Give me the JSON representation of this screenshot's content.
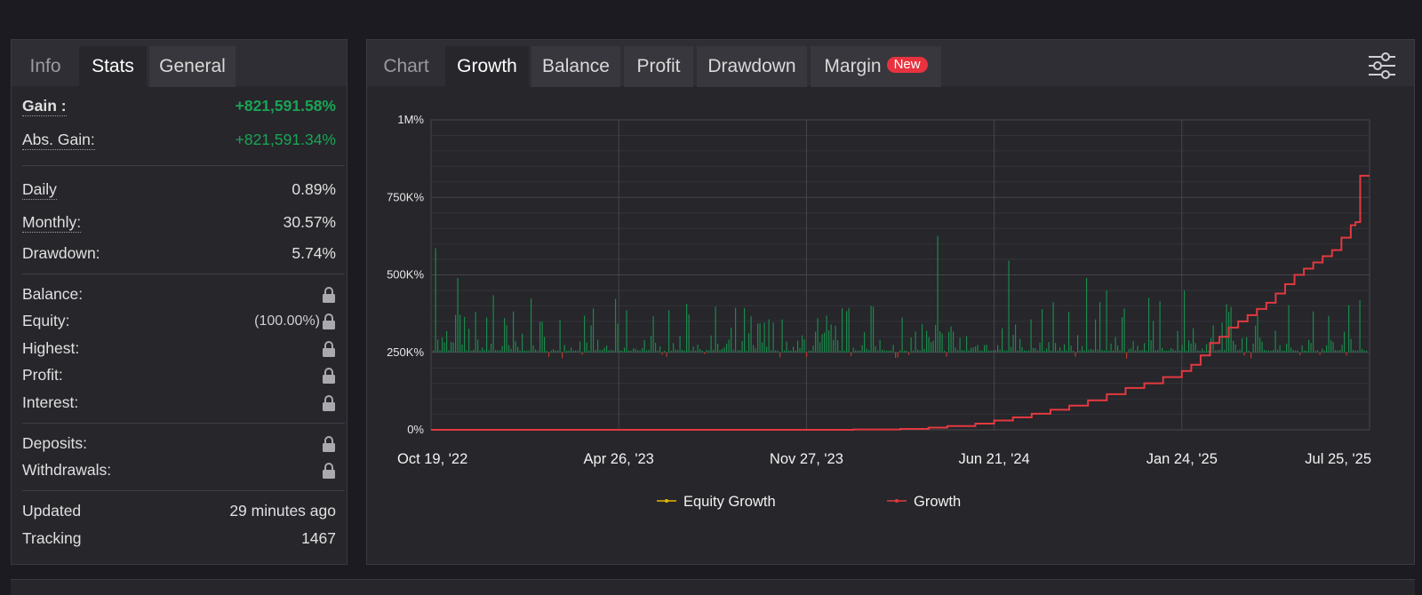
{
  "stats_panel": {
    "tabs": [
      {
        "label": "Info",
        "state": "inactive"
      },
      {
        "label": "Stats",
        "state": "active"
      },
      {
        "label": "General",
        "state": "inactive"
      }
    ],
    "rows": {
      "gain": {
        "label": "Gain :",
        "value": "+821,591.58%"
      },
      "abs_gain": {
        "label": "Abs. Gain:",
        "value": "+821,591.34%"
      },
      "daily": {
        "label": "Daily",
        "value": "0.89%"
      },
      "monthly": {
        "label": "Monthly:",
        "value": "30.57%"
      },
      "drawdown": {
        "label": "Drawdown:",
        "value": "5.74%"
      },
      "balance": {
        "label": "Balance:",
        "icon": "lock-icon"
      },
      "equity": {
        "label": "Equity:",
        "value": "(100.00%)",
        "icon": "lock-icon"
      },
      "highest": {
        "label": "Highest:",
        "icon": "lock-icon"
      },
      "profit": {
        "label": "Profit:",
        "icon": "lock-icon"
      },
      "interest": {
        "label": "Interest:",
        "icon": "lock-icon"
      },
      "deposits": {
        "label": "Deposits:",
        "icon": "lock-icon"
      },
      "withdrawals": {
        "label": "Withdrawals:",
        "icon": "lock-icon"
      },
      "updated": {
        "label": "Updated",
        "value": "29 minutes ago"
      },
      "tracking": {
        "label": "Tracking",
        "value": "1467"
      }
    }
  },
  "chart_panel": {
    "tabs": [
      {
        "label": "Chart",
        "state": "inactive"
      },
      {
        "label": "Growth",
        "state": "active"
      },
      {
        "label": "Balance",
        "state": "inactive"
      },
      {
        "label": "Profit",
        "state": "inactive"
      },
      {
        "label": "Drawdown",
        "state": "inactive"
      },
      {
        "label": "Margin",
        "state": "inactive",
        "badge": "New"
      }
    ],
    "settings_icon": "sliders-icon"
  },
  "colors": {
    "growth_line": "#e2393f",
    "equity_line": "#e6b800",
    "bars_positive": "#1a8a4a",
    "bars_negative": "#c0392b",
    "gain_text": "#1aa454"
  },
  "chart_data": {
    "type": "line",
    "y_ticks": [
      "0%",
      "250K%",
      "500K%",
      "750K%",
      "1M%"
    ],
    "ylim": [
      0,
      1000000
    ],
    "x_ticks": [
      "Oct 19, '22",
      "Apr 26, '23",
      "Nov 27, '23",
      "Jun 21, '24",
      "Jan 24, '25",
      "Jul 25, '25"
    ],
    "grid": true,
    "legend_position": "bottom",
    "legend": [
      "Equity Growth",
      "Growth"
    ],
    "series": [
      {
        "name": "Growth",
        "x": [
          0,
          0.1,
          0.2,
          0.3,
          0.4,
          0.45,
          0.5,
          0.53,
          0.55,
          0.58,
          0.6,
          0.62,
          0.64,
          0.66,
          0.68,
          0.7,
          0.72,
          0.74,
          0.76,
          0.78,
          0.8,
          0.81,
          0.82,
          0.83,
          0.84,
          0.85,
          0.86,
          0.87,
          0.88,
          0.89,
          0.9,
          0.91,
          0.92,
          0.93,
          0.94,
          0.95,
          0.96,
          0.97,
          0.98,
          0.985,
          0.99,
          1.0
        ],
        "y": [
          0,
          0,
          0,
          0,
          0,
          1000,
          3000,
          7000,
          12000,
          20000,
          30000,
          40000,
          52000,
          65000,
          78000,
          95000,
          115000,
          135000,
          150000,
          170000,
          190000,
          210000,
          240000,
          280000,
          300000,
          330000,
          350000,
          370000,
          390000,
          410000,
          440000,
          470000,
          500000,
          520000,
          540000,
          560000,
          580000,
          620000,
          660000,
          670000,
          820000,
          820000
        ]
      }
    ],
    "bars_note": "daily change bars around 250K% baseline"
  }
}
